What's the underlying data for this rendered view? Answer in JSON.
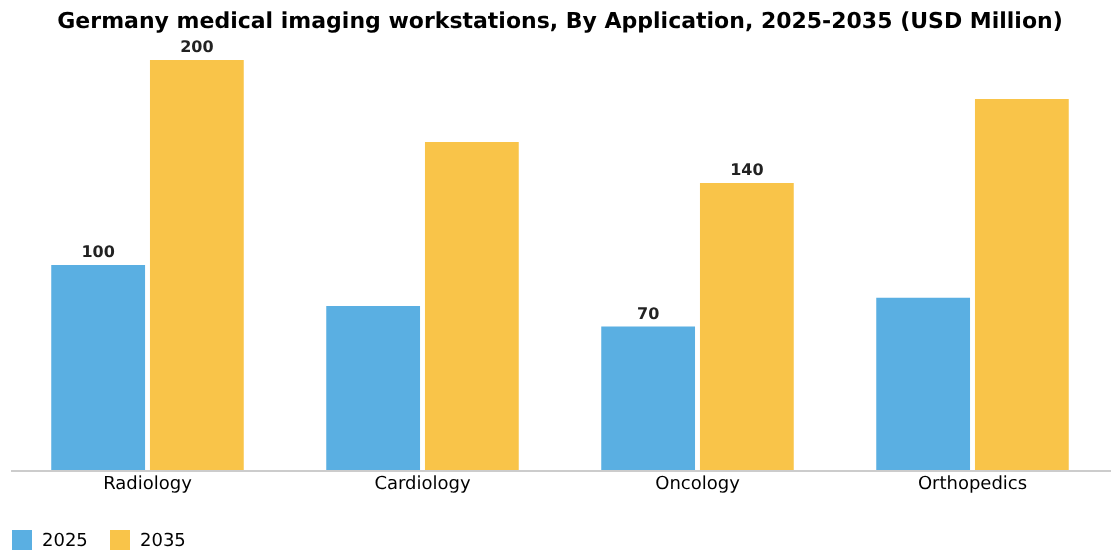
{
  "chart_data": {
    "type": "bar",
    "title": "Germany medical imaging workstations, By Application, 2025-2035 (USD Million)",
    "categories": [
      "Radiology",
      "Cardiology",
      "Oncology",
      "Orthopedics"
    ],
    "series": [
      {
        "name": "2025",
        "color": "#5aafe2",
        "values": [
          100,
          80,
          70,
          84
        ],
        "value_labels": [
          "100",
          null,
          "70",
          null
        ]
      },
      {
        "name": "2035",
        "color": "#f9c449",
        "values": [
          200,
          160,
          140,
          181
        ],
        "value_labels": [
          "200",
          null,
          "140",
          null
        ]
      }
    ],
    "legend": "bottom",
    "grid": false
  }
}
